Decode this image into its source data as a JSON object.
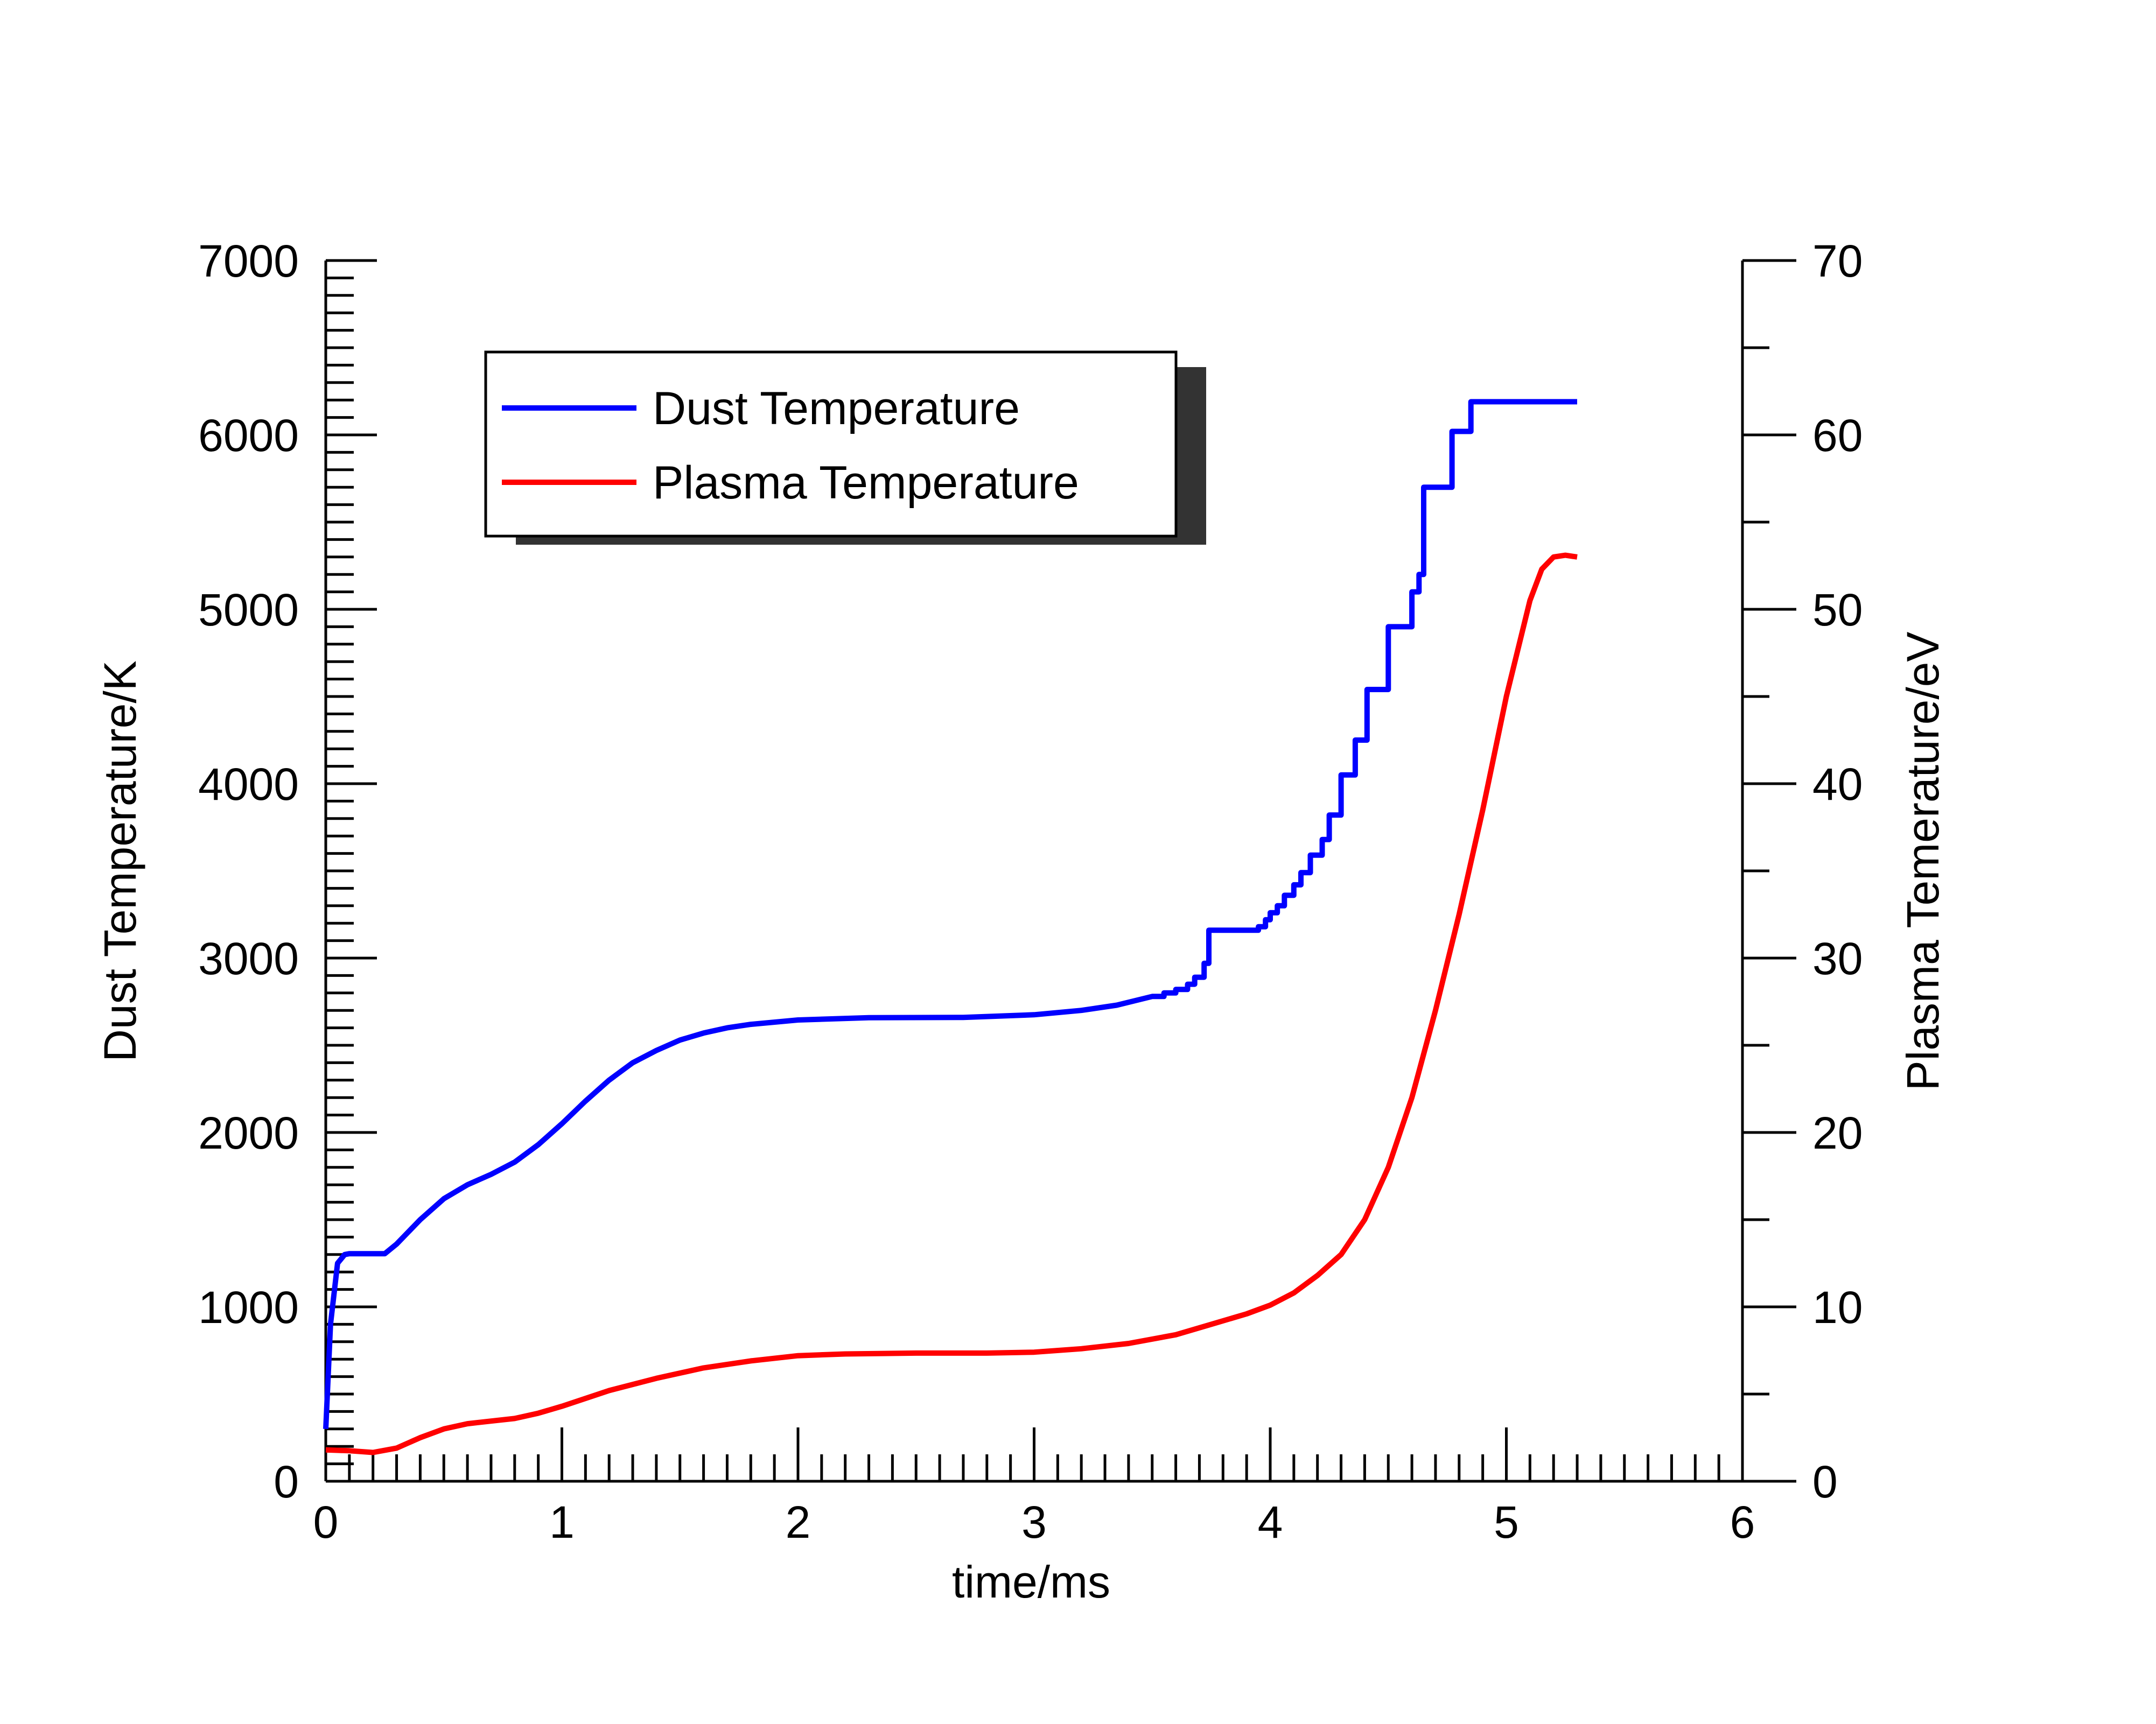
{
  "chart_data": {
    "type": "line",
    "xlabel": "time/ms",
    "ylabel": "Dust Temperature/K",
    "y2label": "Plasma Temerature/eV",
    "xlim": [
      0,
      6
    ],
    "ylim": [
      0,
      7000
    ],
    "y2lim": [
      0,
      70
    ],
    "x_ticks": [
      "0",
      "1",
      "2",
      "3",
      "4",
      "5",
      "6"
    ],
    "y_ticks": [
      "0",
      "1000",
      "2000",
      "3000",
      "4000",
      "5000",
      "6000",
      "7000"
    ],
    "y2_ticks": [
      "0",
      "10",
      "20",
      "30",
      "40",
      "50",
      "60",
      "70"
    ],
    "grid": false,
    "legend_position": "top-left",
    "series": [
      {
        "name": "Dust Temperature",
        "axis": "left",
        "color": "#0000ff",
        "points": [
          [
            0.0,
            300
          ],
          [
            0.02,
            900
          ],
          [
            0.05,
            1250
          ],
          [
            0.08,
            1300
          ],
          [
            0.1,
            1305
          ],
          [
            0.25,
            1305
          ],
          [
            0.3,
            1360
          ],
          [
            0.4,
            1500
          ],
          [
            0.5,
            1620
          ],
          [
            0.6,
            1700
          ],
          [
            0.7,
            1760
          ],
          [
            0.8,
            1830
          ],
          [
            0.9,
            1930
          ],
          [
            1.0,
            2050
          ],
          [
            1.1,
            2180
          ],
          [
            1.2,
            2300
          ],
          [
            1.3,
            2400
          ],
          [
            1.4,
            2470
          ],
          [
            1.5,
            2530
          ],
          [
            1.6,
            2570
          ],
          [
            1.7,
            2600
          ],
          [
            1.8,
            2620
          ],
          [
            2.0,
            2645
          ],
          [
            2.3,
            2658
          ],
          [
            2.7,
            2660
          ],
          [
            3.0,
            2675
          ],
          [
            3.2,
            2700
          ],
          [
            3.35,
            2730
          ],
          [
            3.5,
            2780
          ],
          [
            3.55,
            2780
          ],
          [
            3.55,
            2800
          ],
          [
            3.6,
            2800
          ],
          [
            3.6,
            2820
          ],
          [
            3.65,
            2820
          ],
          [
            3.65,
            2850
          ],
          [
            3.68,
            2850
          ],
          [
            3.68,
            2890
          ],
          [
            3.72,
            2890
          ],
          [
            3.72,
            2970
          ],
          [
            3.74,
            2970
          ],
          [
            3.74,
            3160
          ],
          [
            3.95,
            3160
          ],
          [
            3.95,
            3180
          ],
          [
            3.98,
            3180
          ],
          [
            3.98,
            3220
          ],
          [
            4.0,
            3220
          ],
          [
            4.0,
            3260
          ],
          [
            4.03,
            3260
          ],
          [
            4.03,
            3300
          ],
          [
            4.06,
            3300
          ],
          [
            4.06,
            3360
          ],
          [
            4.1,
            3360
          ],
          [
            4.1,
            3420
          ],
          [
            4.13,
            3420
          ],
          [
            4.13,
            3490
          ],
          [
            4.17,
            3490
          ],
          [
            4.17,
            3590
          ],
          [
            4.22,
            3590
          ],
          [
            4.22,
            3680
          ],
          [
            4.25,
            3680
          ],
          [
            4.25,
            3820
          ],
          [
            4.3,
            3820
          ],
          [
            4.3,
            4050
          ],
          [
            4.36,
            4050
          ],
          [
            4.36,
            4250
          ],
          [
            4.41,
            4250
          ],
          [
            4.41,
            4540
          ],
          [
            4.5,
            4540
          ],
          [
            4.5,
            4900
          ],
          [
            4.6,
            4900
          ],
          [
            4.6,
            5100
          ],
          [
            4.63,
            5100
          ],
          [
            4.63,
            5200
          ],
          [
            4.65,
            5200
          ],
          [
            4.65,
            5700
          ],
          [
            4.77,
            5700
          ],
          [
            4.77,
            6020
          ],
          [
            4.85,
            6020
          ],
          [
            4.85,
            6190
          ],
          [
            5.3,
            6190
          ]
        ]
      },
      {
        "name": "Plasma Temperature",
        "axis": "right",
        "color": "#ff0000",
        "points": [
          [
            0.0,
            1.8
          ],
          [
            0.1,
            1.75
          ],
          [
            0.2,
            1.65
          ],
          [
            0.3,
            1.9
          ],
          [
            0.4,
            2.5
          ],
          [
            0.5,
            3.0
          ],
          [
            0.6,
            3.3
          ],
          [
            0.7,
            3.45
          ],
          [
            0.8,
            3.6
          ],
          [
            0.9,
            3.9
          ],
          [
            1.0,
            4.3
          ],
          [
            1.2,
            5.2
          ],
          [
            1.4,
            5.9
          ],
          [
            1.6,
            6.5
          ],
          [
            1.8,
            6.9
          ],
          [
            2.0,
            7.2
          ],
          [
            2.2,
            7.3
          ],
          [
            2.5,
            7.35
          ],
          [
            2.8,
            7.35
          ],
          [
            3.0,
            7.4
          ],
          [
            3.2,
            7.6
          ],
          [
            3.4,
            7.9
          ],
          [
            3.6,
            8.4
          ],
          [
            3.75,
            9.0
          ],
          [
            3.9,
            9.6
          ],
          [
            4.0,
            10.1
          ],
          [
            4.1,
            10.8
          ],
          [
            4.2,
            11.8
          ],
          [
            4.3,
            13.0
          ],
          [
            4.4,
            15.0
          ],
          [
            4.5,
            18.0
          ],
          [
            4.6,
            22.0
          ],
          [
            4.7,
            27.0
          ],
          [
            4.8,
            32.5
          ],
          [
            4.9,
            38.5
          ],
          [
            5.0,
            45.0
          ],
          [
            5.1,
            50.5
          ],
          [
            5.15,
            52.3
          ],
          [
            5.2,
            53.0
          ],
          [
            5.25,
            53.1
          ],
          [
            5.3,
            53.0
          ]
        ]
      }
    ]
  }
}
